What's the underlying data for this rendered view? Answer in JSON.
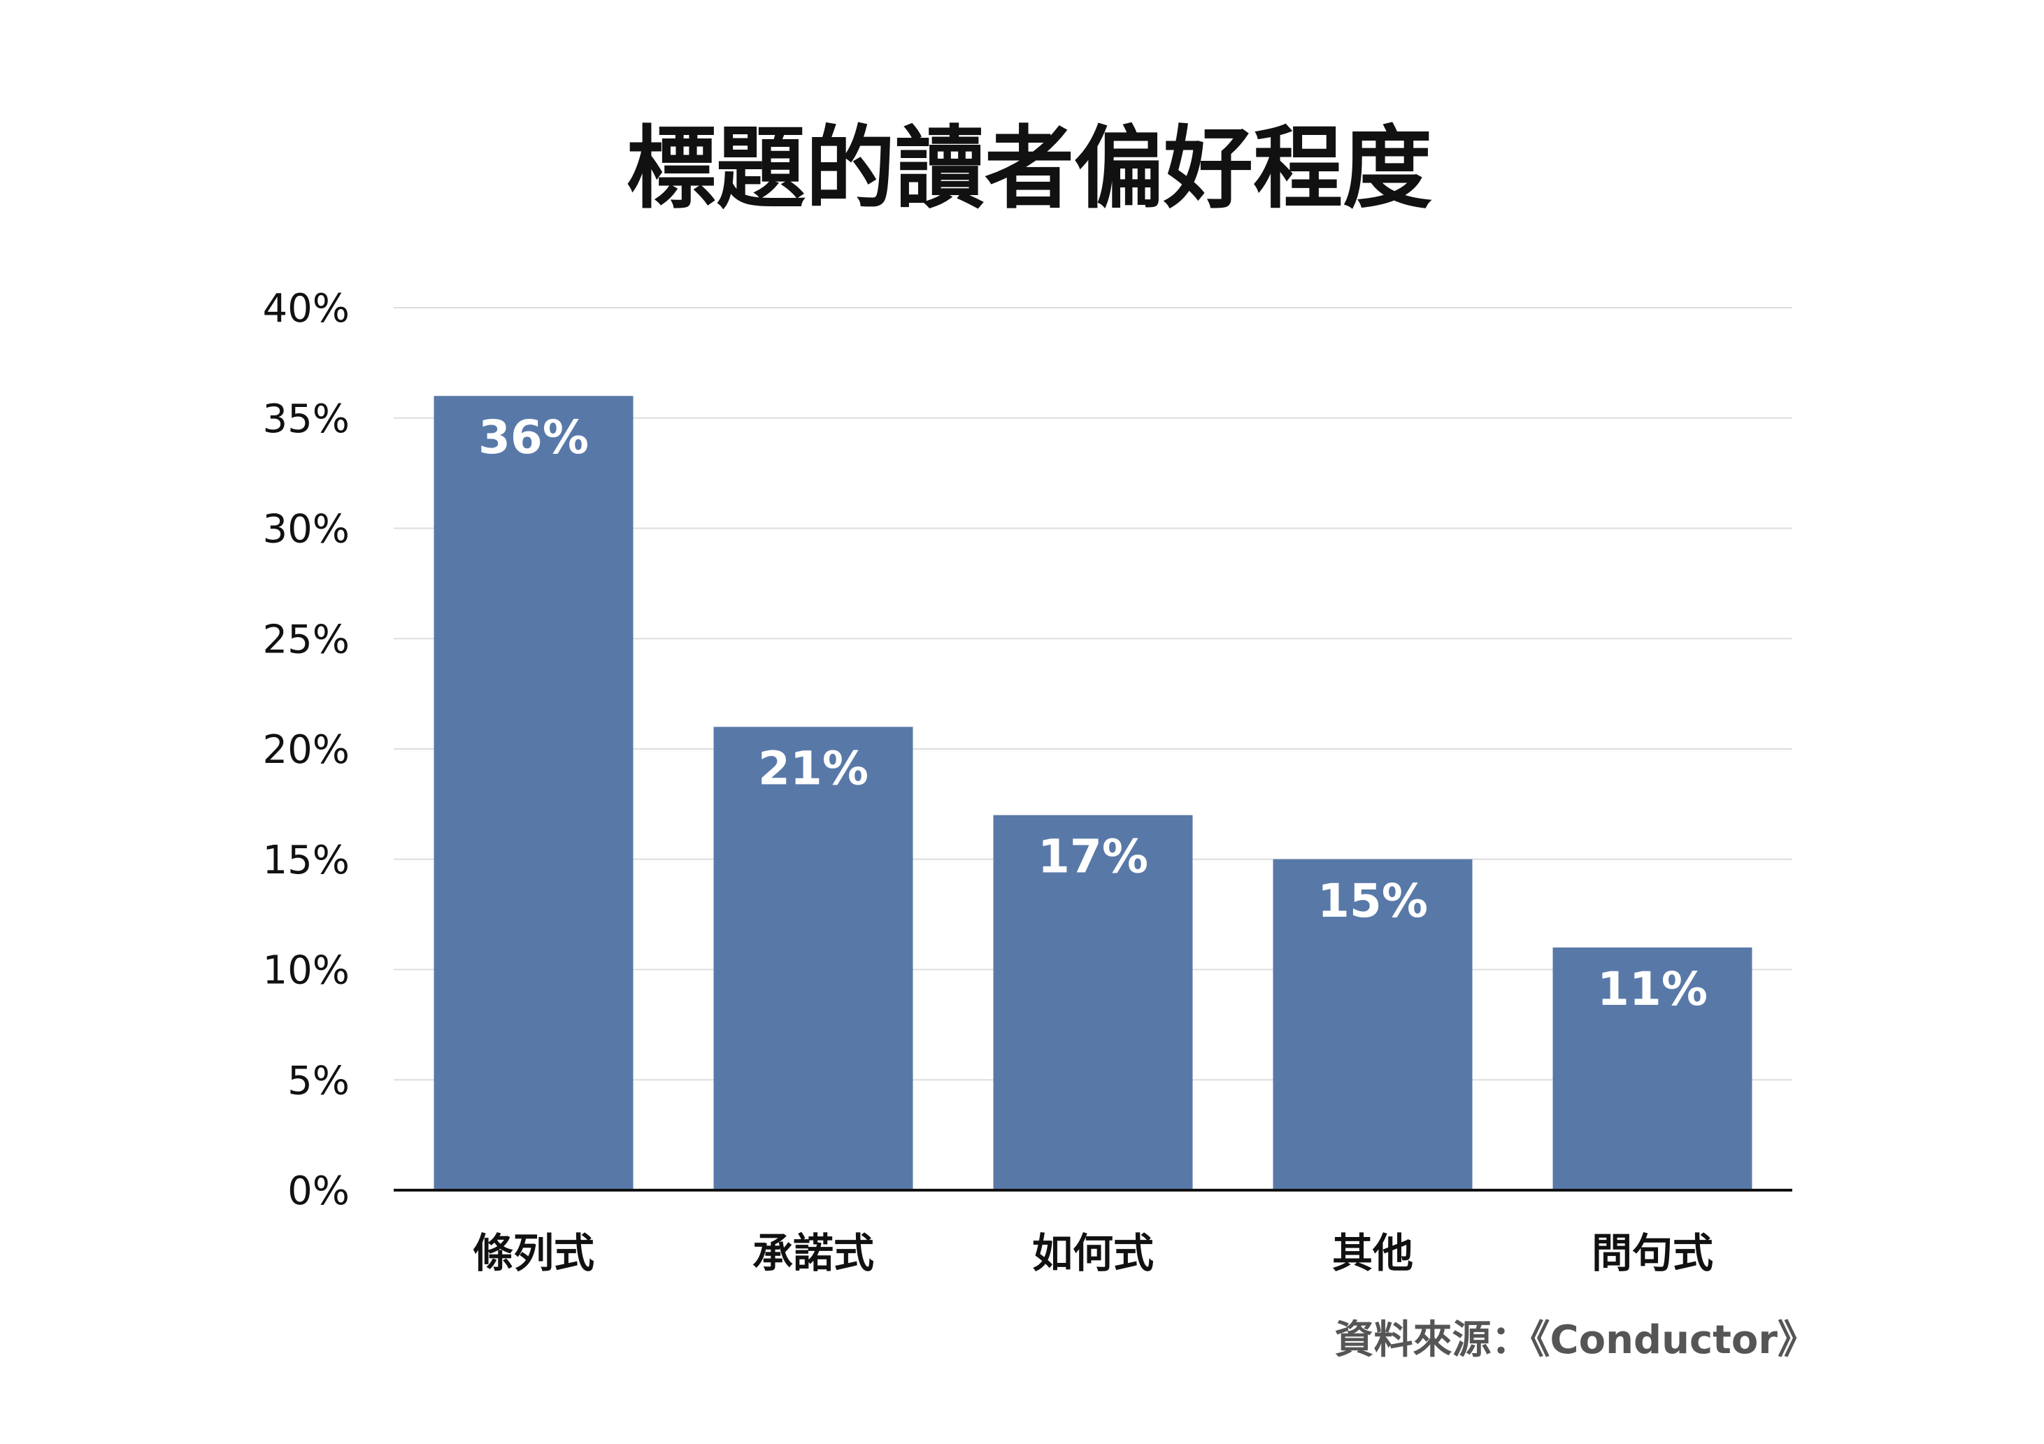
{
  "chart_data": {
    "type": "bar",
    "title": "標題的讀者偏好程度",
    "categories": [
      "條列式",
      "承諾式",
      "如何式",
      "其他",
      "問句式"
    ],
    "values": [
      36,
      21,
      17,
      15,
      11
    ],
    "data_labels": [
      "36%",
      "21%",
      "17%",
      "15%",
      "11%"
    ],
    "ylim": [
      0,
      40
    ],
    "yticks": [
      0,
      5,
      10,
      15,
      20,
      25,
      30,
      35,
      40
    ],
    "ytick_labels": [
      "0%",
      "5%",
      "10%",
      "15%",
      "20%",
      "25%",
      "30%",
      "35%",
      "40%"
    ],
    "grid": true,
    "bar_color": "#5879a8",
    "source": "資料來源：《Conductor》"
  }
}
